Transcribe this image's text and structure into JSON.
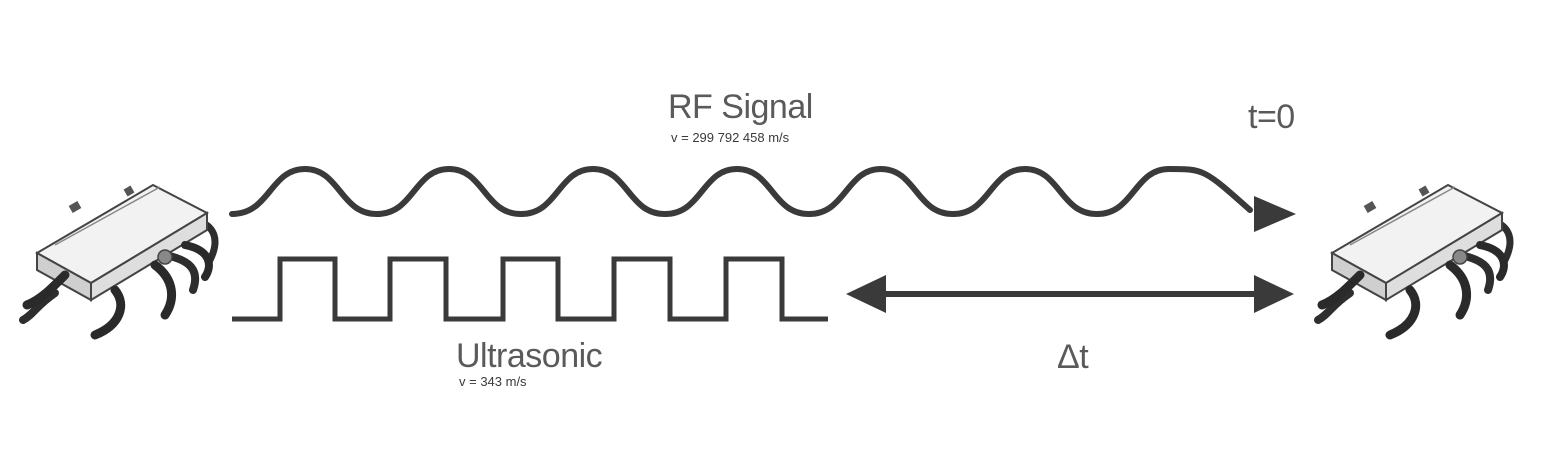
{
  "rf": {
    "title": "RF Signal",
    "speed": "v = 299 792 458 m/s"
  },
  "ultrasonic": {
    "title": "Ultrasonic",
    "speed": "v = 343 m/s"
  },
  "time_start": "t=0",
  "delta_t": "Δt",
  "colors": {
    "stroke": "#3a3a3a",
    "text": "#5a5a5a"
  },
  "icons": [
    "robot-left-icon",
    "robot-right-icon"
  ]
}
